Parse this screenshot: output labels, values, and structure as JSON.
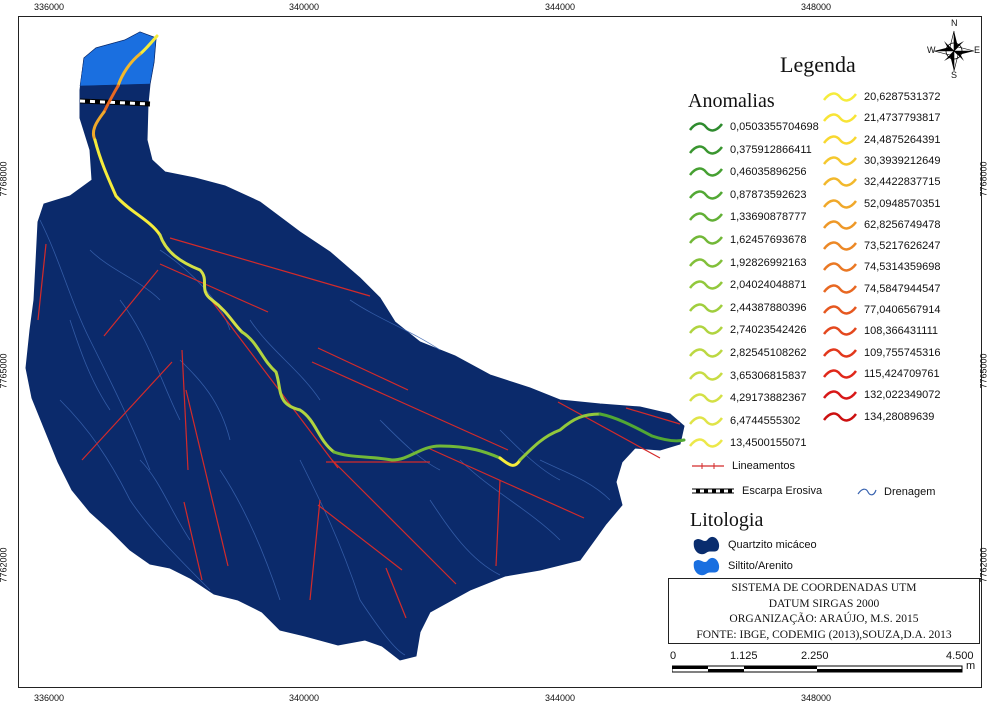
{
  "coords": {
    "top": [
      "336000",
      "340000",
      "344000",
      "348000"
    ],
    "bottom": [
      "336000",
      "340000",
      "344000",
      "348000"
    ],
    "left": [
      "7768000",
      "7765000",
      "7762000"
    ],
    "right": [
      "7768000",
      "7765000",
      "7762000"
    ]
  },
  "compass": {
    "n": "N",
    "s": "S",
    "e": "E",
    "w": "W"
  },
  "legend": {
    "title": "Legenda",
    "anomalias_title": "Anomalias",
    "anomalias": [
      {
        "label": "0,0503355704698",
        "color": "#2e8b2e"
      },
      {
        "label": "0,375912866411",
        "color": "#3a9630"
      },
      {
        "label": "0,46035896256",
        "color": "#46a032"
      },
      {
        "label": "0,87873592623",
        "color": "#52a834"
      },
      {
        "label": "1,33690878777",
        "color": "#62b036"
      },
      {
        "label": "1,62457693678",
        "color": "#72b838"
      },
      {
        "label": "1,92826992163",
        "color": "#82c03a"
      },
      {
        "label": "2,04024048871",
        "color": "#92c83c"
      },
      {
        "label": "2,44387880396",
        "color": "#a0ce3e"
      },
      {
        "label": "2,74023542426",
        "color": "#b0d440"
      },
      {
        "label": "2,82545108262",
        "color": "#bcd842"
      },
      {
        "label": "3,65306815837",
        "color": "#c8dc44"
      },
      {
        "label": "4,29173882367",
        "color": "#d4e046"
      },
      {
        "label": "6,4744555302",
        "color": "#e0e448"
      },
      {
        "label": "13,4500155071",
        "color": "#ece84a"
      },
      {
        "label": "20,6287531372",
        "color": "#f5ec3c"
      },
      {
        "label": "21,4737793817",
        "color": "#f8e436"
      },
      {
        "label": "24,4875264391",
        "color": "#f8d830"
      },
      {
        "label": "30,3939212649",
        "color": "#f5c82e"
      },
      {
        "label": "32,4422837715",
        "color": "#f2b82c"
      },
      {
        "label": "52,0948570351",
        "color": "#f0a82a"
      },
      {
        "label": "62,8256749478",
        "color": "#ee9828"
      },
      {
        "label": "73,5217626247",
        "color": "#ec8826"
      },
      {
        "label": "74,5314359698",
        "color": "#ea7824"
      },
      {
        "label": "74,5847944547",
        "color": "#e86822"
      },
      {
        "label": "77,0406567914",
        "color": "#e65820"
      },
      {
        "label": "108,366431111",
        "color": "#e4481e"
      },
      {
        "label": "109,755745316",
        "color": "#e2381c"
      },
      {
        "label": "115,424709761",
        "color": "#e0281a"
      },
      {
        "label": "132,022349072",
        "color": "#d81818"
      },
      {
        "label": "134,28089639",
        "color": "#cc1010"
      }
    ],
    "lineamentos": "Lineamentos",
    "escarpa": "Escarpa Erosiva",
    "drenagem": "Drenagem",
    "litologia_title": "Litologia",
    "litologia": [
      {
        "label": "Quartzito micáceo",
        "color": "#0a2d6e"
      },
      {
        "label": "Siltito/Arenito",
        "color": "#1a6fe0"
      }
    ]
  },
  "info": {
    "line1": "SISTEMA DE COORDENADAS UTM",
    "line2": "DATUM SIRGAS 2000",
    "line3": "ORGANIZAÇÃO: ARAÚJO, M.S. 2015",
    "line4": "FONTE: IBGE, CODEMIG (2013),SOUZA,D.A. 2013"
  },
  "scale": {
    "labels": [
      "0",
      "1.125",
      "2.250",
      "4.500"
    ],
    "unit": "m"
  },
  "colors": {
    "basin": "#0b2a6b",
    "drainage": "#3a64b0",
    "lineament": "#d42a2a",
    "siltito": "#1a6fe0"
  }
}
